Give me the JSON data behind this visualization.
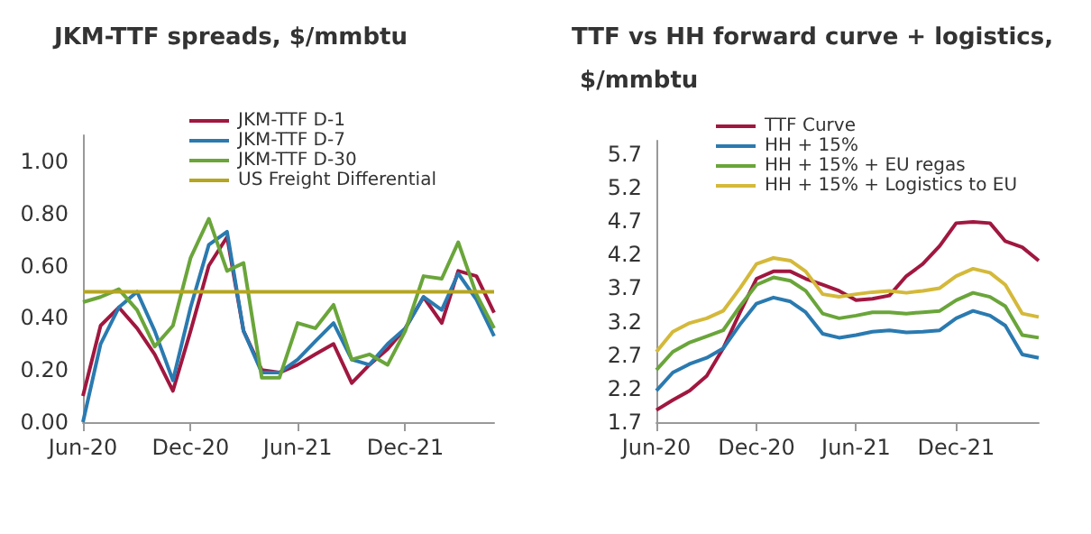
{
  "chart_data": [
    {
      "type": "line",
      "title": "JKM-TTF spreads, $/mmbtu",
      "x": [
        "2020-06",
        "2020-07",
        "2020-08",
        "2020-09",
        "2020-10",
        "2020-11",
        "2020-12",
        "2021-01",
        "2021-02",
        "2021-03",
        "2021-04",
        "2021-05",
        "2021-06",
        "2021-07",
        "2021-08",
        "2021-09",
        "2021-10",
        "2021-11",
        "2021-12",
        "2022-01",
        "2022-02",
        "2022-03",
        "2022-04",
        "2022-05"
      ],
      "series": [
        {
          "name": "JKM-TTF D-1",
          "color": "#a0173f",
          "values": [
            0.1,
            0.37,
            0.44,
            0.36,
            0.26,
            0.12,
            0.35,
            0.6,
            0.71,
            0.35,
            0.2,
            0.19,
            0.22,
            0.26,
            0.3,
            0.15,
            0.22,
            0.28,
            0.36,
            0.48,
            0.38,
            0.58,
            0.56,
            0.42
          ]
        },
        {
          "name": "JKM-TTF D-7",
          "color": "#2a7ab0",
          "values": [
            0.0,
            0.3,
            0.44,
            0.5,
            0.35,
            0.16,
            0.44,
            0.68,
            0.73,
            0.35,
            0.19,
            0.19,
            0.24,
            0.31,
            0.38,
            0.24,
            0.22,
            0.3,
            0.36,
            0.48,
            0.43,
            0.57,
            0.47,
            0.33
          ]
        },
        {
          "name": "JKM-TTF D-30",
          "color": "#6aa53a",
          "values": [
            0.46,
            0.48,
            0.51,
            0.43,
            0.29,
            0.37,
            0.63,
            0.78,
            0.58,
            0.61,
            0.17,
            0.17,
            0.38,
            0.36,
            0.45,
            0.24,
            0.26,
            0.22,
            0.35,
            0.56,
            0.55,
            0.69,
            0.49,
            0.36
          ]
        },
        {
          "name": "US Freight Differential",
          "color": "#b5a520",
          "values": [
            0.5,
            0.5,
            0.5,
            0.5,
            0.5,
            0.5,
            0.5,
            0.5,
            0.5,
            0.5,
            0.5,
            0.5,
            0.5,
            0.5,
            0.5,
            0.5,
            0.5,
            0.5,
            0.5,
            0.5,
            0.5,
            0.5,
            0.5,
            0.5
          ]
        }
      ],
      "xlim": [
        "2020-06",
        "2022-05"
      ],
      "xticks": [
        {
          "value": "2020-06",
          "label": "Jun-20"
        },
        {
          "value": "2020-12",
          "label": "Dec-20"
        },
        {
          "value": "2021-06",
          "label": "Jun-21"
        },
        {
          "value": "2021-12",
          "label": "Dec-21"
        }
      ],
      "ylim": [
        0,
        1.1
      ],
      "yticks": [
        {
          "value": 0,
          "label": "0.00"
        },
        {
          "value": 0.2,
          "label": "0.20"
        },
        {
          "value": 0.4,
          "label": "0.40"
        },
        {
          "value": 0.6,
          "label": "0.60"
        },
        {
          "value": 0.8,
          "label": "0.80"
        },
        {
          "value": 1,
          "label": "1.00"
        }
      ],
      "grid": false,
      "legend": "top",
      "marker": "none",
      "line_style": "solid"
    },
    {
      "type": "line",
      "title": "TTF vs HH forward curve + logistics, $/mmbtu",
      "x": [
        "2020-06",
        "2020-07",
        "2020-08",
        "2020-09",
        "2020-10",
        "2020-11",
        "2020-12",
        "2021-01",
        "2021-02",
        "2021-03",
        "2021-04",
        "2021-05",
        "2021-06",
        "2021-07",
        "2021-08",
        "2021-09",
        "2021-10",
        "2021-11",
        "2021-12",
        "2022-01",
        "2022-02",
        "2022-03",
        "2022-04",
        "2022-05"
      ],
      "series": [
        {
          "name": "TTF Curve",
          "color": "#a0173f",
          "values": [
            1.88,
            2.03,
            2.17,
            2.39,
            2.8,
            3.34,
            3.84,
            3.95,
            3.95,
            3.84,
            3.75,
            3.66,
            3.52,
            3.54,
            3.59,
            3.88,
            4.06,
            4.33,
            4.67,
            4.69,
            4.67,
            4.4,
            4.31,
            4.11
          ]
        },
        {
          "name": "HH + 15%",
          "color": "#2a7ab0",
          "values": [
            2.17,
            2.44,
            2.57,
            2.66,
            2.8,
            3.16,
            3.47,
            3.56,
            3.5,
            3.34,
            3.02,
            2.96,
            3.0,
            3.05,
            3.07,
            3.04,
            3.05,
            3.07,
            3.25,
            3.36,
            3.29,
            3.14,
            2.71,
            2.66
          ]
        },
        {
          "name": "HH + 15% + EU regas",
          "color": "#6aa53a",
          "values": [
            2.48,
            2.75,
            2.89,
            2.98,
            3.07,
            3.43,
            3.75,
            3.86,
            3.81,
            3.66,
            3.32,
            3.25,
            3.29,
            3.34,
            3.34,
            3.32,
            3.34,
            3.36,
            3.52,
            3.63,
            3.57,
            3.43,
            3.0,
            2.96
          ]
        },
        {
          "name": "HH + 15% + Logistics to EU",
          "color": "#d4b93a",
          "values": [
            2.75,
            3.05,
            3.18,
            3.25,
            3.36,
            3.7,
            4.06,
            4.15,
            4.11,
            3.95,
            3.61,
            3.57,
            3.61,
            3.64,
            3.66,
            3.63,
            3.66,
            3.7,
            3.88,
            3.99,
            3.93,
            3.75,
            3.32,
            3.27
          ]
        }
      ],
      "xlim": [
        "2020-06",
        "2022-05"
      ],
      "xticks": [
        {
          "value": "2020-06",
          "label": "Jun-20"
        },
        {
          "value": "2020-12",
          "label": "Dec-20"
        },
        {
          "value": "2021-06",
          "label": "Jun-21"
        },
        {
          "value": "2021-12",
          "label": "Dec-21"
        }
      ],
      "ylim": [
        1.7,
        5.9
      ],
      "yticks": [
        1.7,
        2.2,
        2.7,
        3.2,
        3.7,
        4.2,
        4.7,
        5.2,
        5.7
      ],
      "grid": false,
      "legend": "top",
      "marker": "none",
      "line_style": "solid"
    }
  ]
}
